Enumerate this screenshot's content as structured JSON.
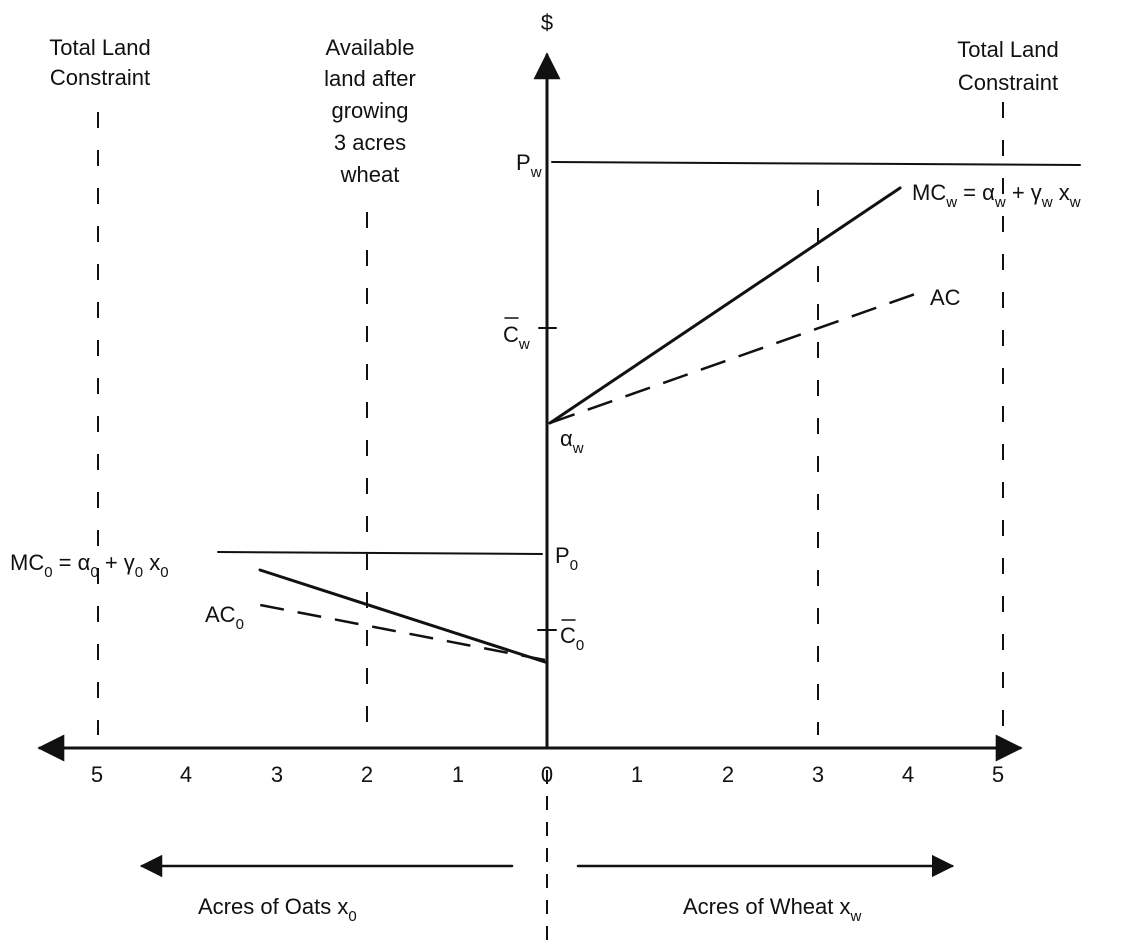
{
  "labels": {
    "y_axis": "$",
    "total_land_left_1": "Total Land",
    "total_land_left_2": "Constraint",
    "total_land_right_1": "Total Land",
    "total_land_right_2": "Constraint",
    "available_1": "Available",
    "available_2": "land after",
    "available_3": "growing",
    "available_4": "3 acres",
    "available_5": "wheat",
    "p_w": "P",
    "p_w_sub": "w",
    "c_w": "C",
    "c_w_sub": "w",
    "alpha_w": "α",
    "alpha_w_sub": "w",
    "p_o": "P",
    "p_o_sub": "0",
    "c_o": "C",
    "c_o_sub": "0",
    "mc_w": "MC",
    "mc_w_sub": "w",
    "mc_w_eq": " = α",
    "mc_w_eq_sub1": "w",
    "mc_w_eq2": " + γ",
    "mc_w_eq_sub2": "w",
    "mc_w_eq3": " x",
    "mc_w_eq_sub3": "w",
    "ac_w": "AC",
    "mc_o": "MC",
    "mc_o_sub": "0",
    "mc_o_eq": " = α",
    "mc_o_eq_sub1": "0",
    "mc_o_eq2": " + γ",
    "mc_o_eq_sub2": "0",
    "mc_o_eq3": " x",
    "mc_o_eq_sub3": "0",
    "ac_o": "AC",
    "ac_o_sub": "0",
    "oats_axis": "Acres of Oats  x",
    "oats_axis_sub": "0",
    "wheat_axis": "Acres of Wheat   x",
    "wheat_axis_sub": "w"
  },
  "ticks_left": [
    "5",
    "4",
    "3",
    "2",
    "1"
  ],
  "tick_origin": "0",
  "ticks_right": [
    "1",
    "2",
    "3",
    "4",
    "5"
  ]
}
